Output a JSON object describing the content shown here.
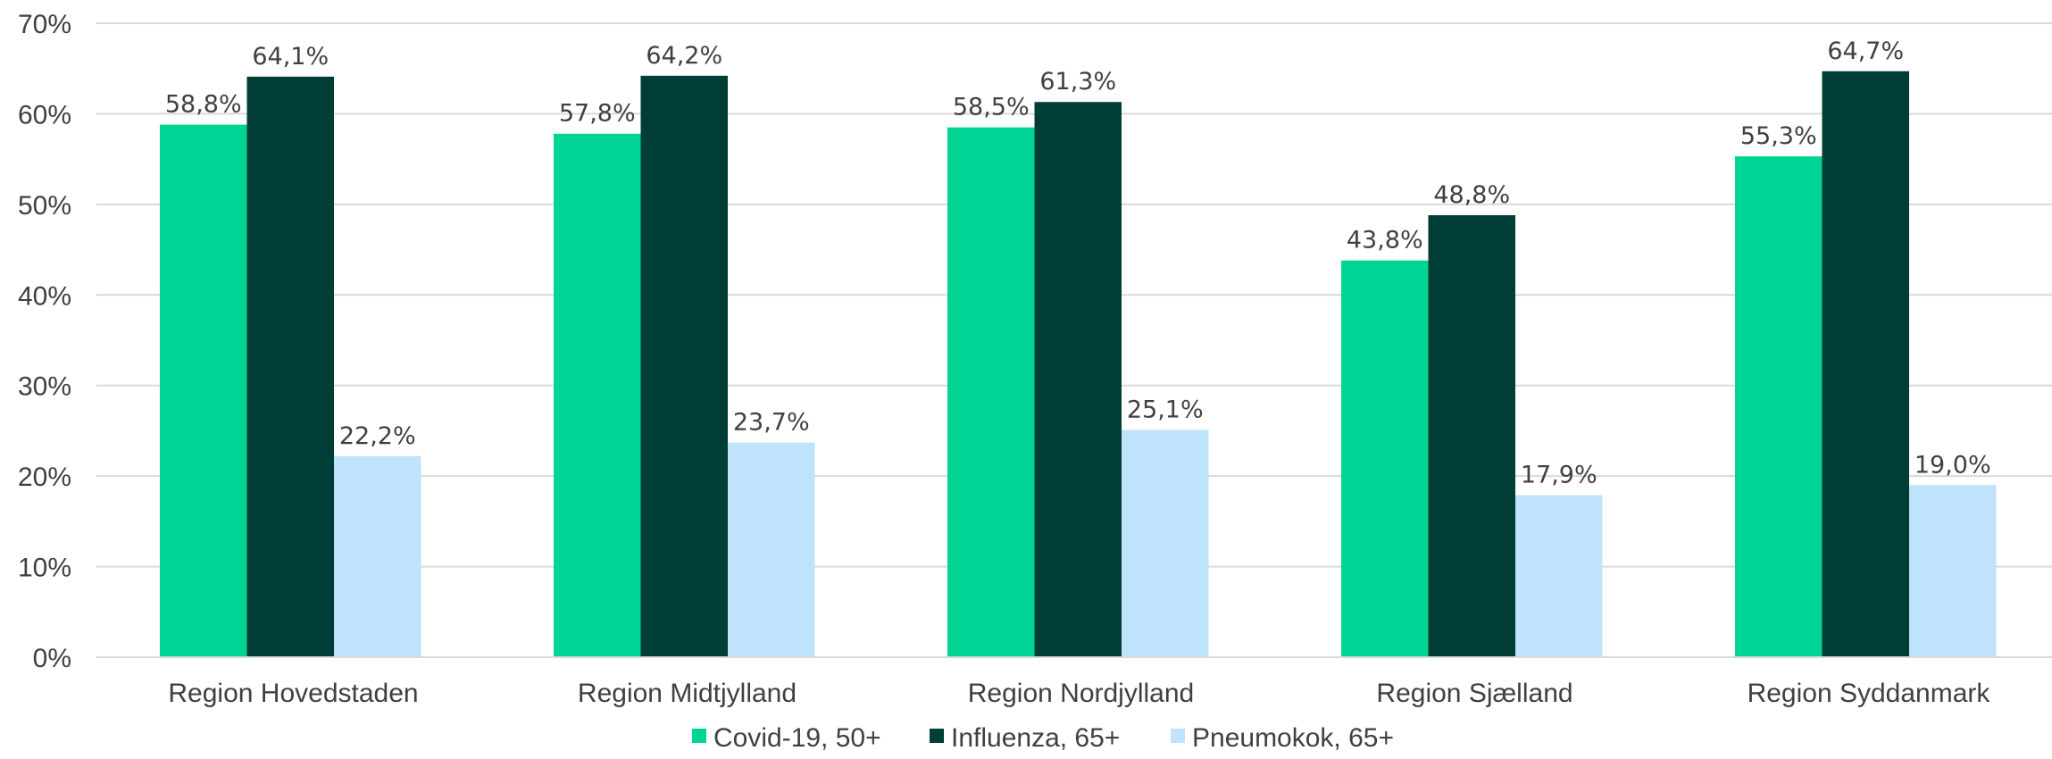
{
  "chart_data": {
    "type": "bar",
    "categories": [
      "Region Hovedstaden",
      "Region Midtjylland",
      "Region Nordjylland",
      "Region Sjælland",
      "Region Syddanmark"
    ],
    "series": [
      {
        "name": "Covid-19, 50+",
        "color": "#00D494",
        "values": [
          58.8,
          57.8,
          58.5,
          43.8,
          55.3
        ],
        "labels": [
          "58,8%",
          "57,8%",
          "58,5%",
          "43,8%",
          "55,3%"
        ]
      },
      {
        "name": "Influenza, 65+",
        "color": "#003D36",
        "values": [
          64.1,
          64.2,
          61.3,
          48.8,
          64.7
        ],
        "labels": [
          "64,1%",
          "64,2%",
          "61,3%",
          "48,8%",
          "64,7%"
        ]
      },
      {
        "name": "Pneumokok, 65+",
        "color": "#BFE3FB",
        "values": [
          22.2,
          23.7,
          25.1,
          17.9,
          19.0
        ],
        "labels": [
          "22,2%",
          "23,7%",
          "25,1%",
          "17,9%",
          "19,0%"
        ]
      }
    ],
    "y_ticks": [
      "0%",
      "10%",
      "20%",
      "30%",
      "40%",
      "50%",
      "60%",
      "70%"
    ],
    "ylim": [
      0,
      70
    ],
    "grid": true,
    "gridline_color": "#D9D9D9",
    "legend_position": "bottom",
    "title": "",
    "xlabel": "",
    "ylabel": ""
  }
}
